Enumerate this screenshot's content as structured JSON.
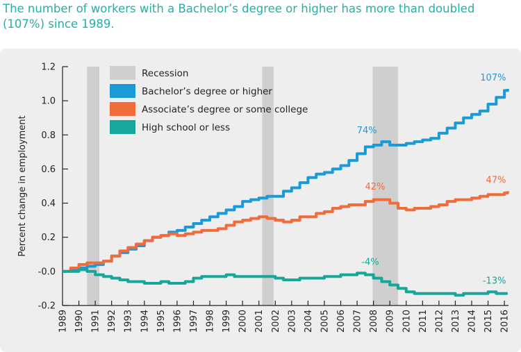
{
  "title": "The number of workers with a Bachelor’s degree or higher has more than doubled (107%) since 1989.",
  "chart_data": {
    "type": "line",
    "ylabel": "Percent change in employment",
    "xlabel": "",
    "ylim": [
      -0.2,
      1.2
    ],
    "xlim": [
      1989,
      2016.25
    ],
    "y_ticks": [
      "-0.2",
      "-0.0",
      "0.2",
      "0.4",
      "0.6",
      "0.8",
      "1.0",
      "1.2"
    ],
    "y_tick_values": [
      -0.2,
      0.0,
      0.2,
      0.4,
      0.6,
      0.8,
      1.0,
      1.2
    ],
    "x_ticks": [
      "1989",
      "1990",
      "1991",
      "1992",
      "1993",
      "1994",
      "1995",
      "1996",
      "1997",
      "1998",
      "1999",
      "2000",
      "2001",
      "2002",
      "2003",
      "2004",
      "2005",
      "2006",
      "2007",
      "2008",
      "2009",
      "2010",
      "2011",
      "2012",
      "2013",
      "2014",
      "2015",
      "2016"
    ],
    "grid": false,
    "legend_position": "top-left",
    "recessions": [
      [
        1990.5,
        1991.25
      ],
      [
        2001.2,
        2001.9
      ],
      [
        2007.95,
        2009.5
      ]
    ],
    "recession_label": "Recession",
    "recession_color": "#cfcfcf",
    "series": [
      {
        "name": "Bachelor’s degree or higher",
        "color": "#1a9ad6",
        "x": [
          1989,
          1989.5,
          1990,
          1990.5,
          1991,
          1991.5,
          1992,
          1992.5,
          1993,
          1993.5,
          1994,
          1994.5,
          1995,
          1995.5,
          1996,
          1996.5,
          1997,
          1997.5,
          1998,
          1998.5,
          1999,
          1999.5,
          2000,
          2000.5,
          2001,
          2001.5,
          2002,
          2002.5,
          2003,
          2003.5,
          2004,
          2004.5,
          2005,
          2005.5,
          2006,
          2006.5,
          2007,
          2007.5,
          2008,
          2008.5,
          2009,
          2009.5,
          2010,
          2010.5,
          2011,
          2011.5,
          2012,
          2012.5,
          2013,
          2013.5,
          2014,
          2014.5,
          2015,
          2015.5,
          2016,
          2016.2
        ],
        "values": [
          0.0,
          0.01,
          0.02,
          0.03,
          0.04,
          0.06,
          0.09,
          0.11,
          0.13,
          0.15,
          0.18,
          0.2,
          0.21,
          0.23,
          0.24,
          0.26,
          0.28,
          0.3,
          0.32,
          0.34,
          0.36,
          0.38,
          0.41,
          0.42,
          0.43,
          0.44,
          0.44,
          0.47,
          0.49,
          0.52,
          0.55,
          0.57,
          0.58,
          0.6,
          0.62,
          0.65,
          0.69,
          0.73,
          0.74,
          0.76,
          0.74,
          0.74,
          0.75,
          0.76,
          0.77,
          0.78,
          0.81,
          0.84,
          0.87,
          0.9,
          0.92,
          0.94,
          0.98,
          1.02,
          1.06,
          1.07
        ]
      },
      {
        "name": "Associate’s degree or some college",
        "color": "#f26b3a",
        "x": [
          1989,
          1989.5,
          1990,
          1990.5,
          1991,
          1991.5,
          1992,
          1992.5,
          1993,
          1993.5,
          1994,
          1994.5,
          1995,
          1995.5,
          1996,
          1996.5,
          1997,
          1997.5,
          1998,
          1998.5,
          1999,
          1999.5,
          2000,
          2000.5,
          2001,
          2001.5,
          2002,
          2002.5,
          2003,
          2003.5,
          2004,
          2004.5,
          2005,
          2005.5,
          2006,
          2006.5,
          2007,
          2007.5,
          2008,
          2008.5,
          2009,
          2009.5,
          2010,
          2010.5,
          2011,
          2011.5,
          2012,
          2012.5,
          2013,
          2013.5,
          2014,
          2014.5,
          2015,
          2015.5,
          2016,
          2016.2
        ],
        "values": [
          0.0,
          0.02,
          0.04,
          0.05,
          0.05,
          0.06,
          0.09,
          0.12,
          0.14,
          0.16,
          0.18,
          0.2,
          0.21,
          0.22,
          0.21,
          0.22,
          0.23,
          0.24,
          0.24,
          0.25,
          0.27,
          0.29,
          0.3,
          0.31,
          0.32,
          0.31,
          0.3,
          0.29,
          0.3,
          0.32,
          0.32,
          0.34,
          0.35,
          0.37,
          0.38,
          0.39,
          0.39,
          0.41,
          0.42,
          0.42,
          0.4,
          0.37,
          0.36,
          0.37,
          0.37,
          0.38,
          0.39,
          0.41,
          0.42,
          0.42,
          0.43,
          0.44,
          0.45,
          0.45,
          0.46,
          0.47
        ]
      },
      {
        "name": "High school or less",
        "color": "#17a69a",
        "x": [
          1989,
          1989.5,
          1990,
          1990.5,
          1991,
          1991.5,
          1992,
          1992.5,
          1993,
          1993.5,
          1994,
          1994.5,
          1995,
          1995.5,
          1996,
          1996.5,
          1997,
          1997.5,
          1998,
          1998.5,
          1999,
          1999.5,
          2000,
          2000.5,
          2001,
          2001.5,
          2002,
          2002.5,
          2003,
          2003.5,
          2004,
          2004.5,
          2005,
          2005.5,
          2006,
          2006.5,
          2007,
          2007.5,
          2008,
          2008.5,
          2009,
          2009.5,
          2010,
          2010.5,
          2011,
          2011.5,
          2012,
          2012.5,
          2013,
          2013.5,
          2014,
          2014.5,
          2015,
          2015.5,
          2016,
          2016.2
        ],
        "values": [
          0.0,
          0.0,
          0.01,
          0.0,
          -0.02,
          -0.03,
          -0.04,
          -0.05,
          -0.06,
          -0.06,
          -0.07,
          -0.07,
          -0.06,
          -0.07,
          -0.07,
          -0.06,
          -0.04,
          -0.03,
          -0.03,
          -0.03,
          -0.02,
          -0.03,
          -0.03,
          -0.03,
          -0.03,
          -0.03,
          -0.04,
          -0.05,
          -0.05,
          -0.04,
          -0.04,
          -0.04,
          -0.03,
          -0.03,
          -0.02,
          -0.02,
          -0.01,
          -0.02,
          -0.04,
          -0.06,
          -0.08,
          -0.1,
          -0.12,
          -0.13,
          -0.13,
          -0.13,
          -0.13,
          -0.13,
          -0.14,
          -0.13,
          -0.13,
          -0.13,
          -0.12,
          -0.13,
          -0.13,
          -0.13
        ]
      }
    ],
    "annotations": [
      {
        "text": "107%",
        "x": 2016.1,
        "y": 1.07,
        "series": 0
      },
      {
        "text": "74%",
        "x": 2007.6,
        "y": 0.76,
        "series": 0
      },
      {
        "text": "42%",
        "x": 2008.1,
        "y": 0.43,
        "series": 1
      },
      {
        "text": "47%",
        "x": 2016.1,
        "y": 0.47,
        "series": 1
      },
      {
        "text": "-4%",
        "x": 2007.8,
        "y": -0.01,
        "series": 2
      },
      {
        "text": "-13%",
        "x": 2016.1,
        "y": -0.12,
        "series": 2
      }
    ]
  }
}
